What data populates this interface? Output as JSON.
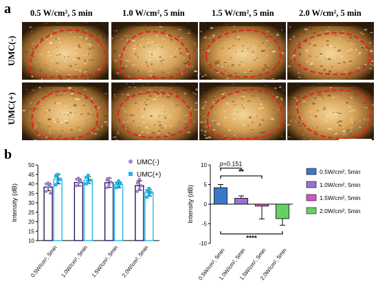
{
  "panel_a": {
    "letter": "a",
    "columns": [
      {
        "title": "0.5 W/cm², 5 min"
      },
      {
        "title": "1.0 W/cm², 5 min"
      },
      {
        "title": "1.5 W/cm², 5 min"
      },
      {
        "title": "2.0 W/cm², 5 min"
      }
    ],
    "rows": [
      {
        "label": "UMC(-)"
      },
      {
        "label": "UMC(+)"
      }
    ],
    "colors": {
      "outline": "#e8201c",
      "tissue": "#d9a45a",
      "background": "#2a1a08"
    }
  },
  "panel_b": {
    "letter": "b"
  },
  "chart_data": [
    {
      "type": "bar",
      "ylabel": "Intensity (dB)",
      "ylim": [
        10,
        50
      ],
      "yticks": [
        10,
        15,
        20,
        25,
        30,
        35,
        40,
        45,
        50
      ],
      "categories": [
        "0.5W/cm², 5min",
        "1.0W/cm², 5min",
        "1.5W/cm², 5min",
        "2.0W/cm², 5min"
      ],
      "legend_position": "top-right",
      "series": [
        {
          "name": "UMC(-)",
          "color": "#a27fd6",
          "values": [
            38.3,
            40.7,
            40.6,
            39.1
          ],
          "errors": [
            2.0,
            1.8,
            2.5,
            2.5
          ],
          "points": [
            [
              36.0,
              38.0,
              39.5,
              40.0,
              40.5,
              35.0
            ],
            [
              39.0,
              40.5,
              41.5,
              42.5,
              43.0
            ],
            [
              38.0,
              39.5,
              41.0,
              42.0,
              43.0
            ],
            [
              36.0,
              37.5,
              39.0,
              40.5,
              42.5
            ]
          ]
        },
        {
          "name": "UMC(+)",
          "color": "#1fb8e8",
          "values": [
            42.5,
            42.0,
            39.5,
            35.3
          ],
          "errors": [
            2.5,
            1.8,
            1.5,
            1.7
          ],
          "points": [
            [
              39.5,
              41.0,
              42.5,
              44.0,
              45.0
            ],
            [
              40.0,
              41.0,
              42.0,
              43.5,
              44.5
            ],
            [
              38.0,
              39.0,
              40.0,
              40.5,
              41.5
            ],
            [
              33.0,
              34.5,
              35.5,
              36.5,
              37.5
            ]
          ]
        }
      ]
    },
    {
      "type": "bar",
      "ylabel": "Intensity (dB)",
      "ylim": [
        -10,
        10
      ],
      "yticks": [
        -10,
        -5,
        0,
        5,
        10
      ],
      "categories": [
        "0.5W/cm², 5min",
        "1.0W/cm², 5min",
        "1.5W/cm², 5min",
        "2.0W/cm², 5min"
      ],
      "legend_position": "right",
      "series": [
        {
          "name": "0.5W/cm², 5min",
          "color": "#3c78c8",
          "value": 4.2,
          "error": 0.8
        },
        {
          "name": "1.0W/cm², 5min",
          "color": "#9a72d2",
          "value": 1.5,
          "error": 0.6
        },
        {
          "name": "1.5W/cm², 5min",
          "color": "#d455c8",
          "value": -0.5,
          "error": 3.3
        },
        {
          "name": "2.0W/cm², 5min",
          "color": "#66d066",
          "value": -3.7,
          "error": 1.7
        }
      ],
      "annotations": [
        {
          "from": 0,
          "to": 1,
          "text": "=0.151",
          "prefix": "p"
        },
        {
          "from": 0,
          "to": 2,
          "text": "**"
        },
        {
          "from": 0,
          "to": 3,
          "text": "****"
        }
      ]
    }
  ]
}
